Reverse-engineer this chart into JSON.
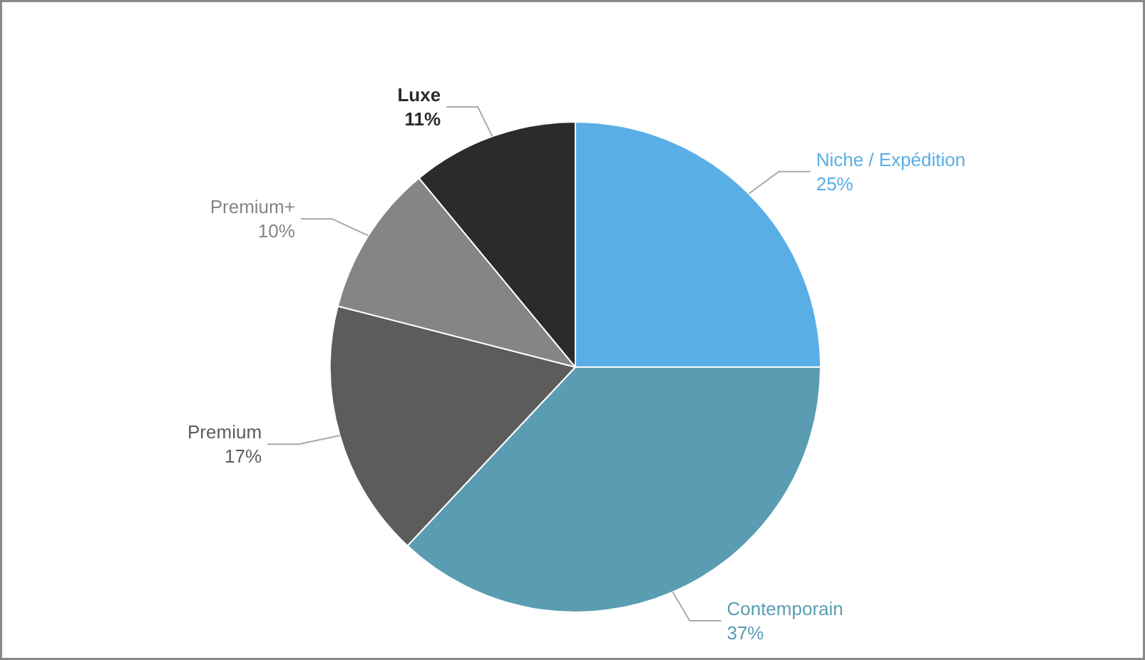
{
  "chart_data": {
    "type": "pie",
    "categories": [
      "Niche / Expédition",
      "Contemporain",
      "Premium",
      "Premium+",
      "Luxe"
    ],
    "values": [
      25,
      37,
      17,
      10,
      11
    ],
    "colors": [
      "#5aaee6",
      "#5a9db3",
      "#5c5c5c",
      "#858585",
      "#2b2b2b"
    ],
    "value_labels": [
      "25%",
      "37%",
      "17%",
      "10%",
      "11%"
    ]
  }
}
